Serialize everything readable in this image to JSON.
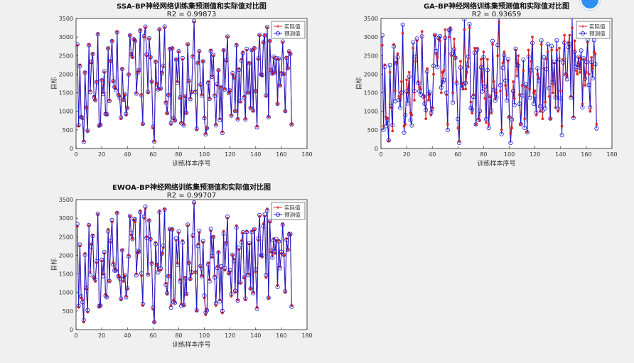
{
  "colors": {
    "actual": "#e02020",
    "predicted": "#1a1ad0",
    "axis": "#222222",
    "grid": "#ececec",
    "figure_bg": "#f0f0f0",
    "plot_bg": "#ffffff"
  },
  "chart_data": [
    {
      "id": "ssa",
      "type": "line",
      "title": "SSA-BP神经网络训练集预测值和实际值对比图",
      "subtitle": "R2 = 0.99873",
      "xlabel": "训练样本序号",
      "ylabel": "目标",
      "xlim": [
        0,
        180
      ],
      "ylim": [
        0,
        3500
      ],
      "xticks": [
        "0",
        "20",
        "40",
        "60",
        "80",
        "100",
        "120",
        "140",
        "160",
        "180"
      ],
      "yticks": [
        "0",
        "500",
        "1000",
        "1500",
        "2000",
        "2500",
        "3000",
        "3500"
      ],
      "legend": {
        "position": "top-right",
        "entries": [
          "实际值",
          "预测值"
        ]
      },
      "noise": 35
    },
    {
      "id": "ga",
      "type": "line",
      "title": "GA-BP神经网络训练集预测值和实际值对比图",
      "subtitle": "R2 = 0.93659",
      "xlabel": "训练样本序号",
      "ylabel": "目标",
      "xlim": [
        0,
        180
      ],
      "ylim": [
        0,
        3500
      ],
      "xticks": [
        "0",
        "20",
        "40",
        "60",
        "80",
        "100",
        "120",
        "140",
        "160",
        "180"
      ],
      "yticks": [
        "0",
        "500",
        "1000",
        "1500",
        "2000",
        "2500",
        "3000",
        "3500"
      ],
      "legend": {
        "position": "top-right",
        "entries": [
          "实际值",
          "预测值"
        ]
      },
      "noise": 320
    },
    {
      "id": "ewoa",
      "type": "line",
      "title": "EWOA-BP神经网络训练集预测值和实际值对比图",
      "subtitle": "R2 = 0.99707",
      "xlabel": "训练样本序号",
      "ylabel": "目标",
      "xlim": [
        0,
        180
      ],
      "ylim": [
        0,
        3500
      ],
      "xticks": [
        "0",
        "20",
        "40",
        "60",
        "80",
        "100",
        "120",
        "140",
        "160",
        "180"
      ],
      "yticks": [
        "0",
        "500",
        "1000",
        "1500",
        "2000",
        "2500",
        "3000",
        "3500"
      ],
      "legend": {
        "position": "top-right",
        "entries": [
          "实际值",
          "预测值"
        ]
      },
      "noise": 70
    }
  ],
  "series_actual": [
    2780,
    600,
    2250,
    850,
    800,
    200,
    2050,
    1100,
    470,
    2800,
    1550,
    2300,
    2550,
    1400,
    1300,
    1800,
    3100,
    600,
    650,
    1850,
    1500,
    2050,
    950,
    900,
    2700,
    1300,
    2350,
    2900,
    1800,
    1650,
    1600,
    3150,
    1450,
    1400,
    800,
    2150,
    1300,
    1450,
    900,
    1100,
    2000,
    3050,
    2550,
    2450,
    2950,
    2900,
    1500,
    2050,
    2100,
    3200,
    1450,
    650,
    3000,
    3250,
    2500,
    1500,
    2950,
    2450,
    1800,
    550,
    200,
    2350,
    1750,
    1600,
    3200,
    1600,
    2050,
    2200,
    3250,
    1250,
    950,
    1450,
    2700,
    650,
    2700,
    800,
    750,
    2400,
    1800,
    2600,
    1350,
    700,
    2400,
    650,
    1400,
    950,
    2800,
    1800,
    1350,
    1500,
    2500,
    3400,
    1550,
    500,
    2300,
    2600,
    1700,
    1450,
    2350,
    850,
    400,
    550,
    1800,
    1350,
    2650,
    1950,
    2500,
    1450,
    650,
    1700,
    2100,
    800,
    1650,
    450,
    2650,
    1600,
    2350,
    3000,
    1500,
    1550,
    900,
    2000,
    1900,
    1000,
    2800,
    800,
    2150,
    1250,
    2400,
    2600,
    1400,
    800,
    2650,
    1500,
    2300,
    1100,
    2650,
    1000,
    2700,
    1550,
    600,
    2400,
    3050,
    2000,
    1950,
    2850,
    3050,
    1400,
    3250,
    850,
    2900,
    2100,
    2000,
    2450,
    2050,
    2400,
    1200,
    2400,
    1700,
    2050,
    2850,
    2000,
    1000,
    2450,
    2150,
    2600,
    2550,
    650
  ]
}
